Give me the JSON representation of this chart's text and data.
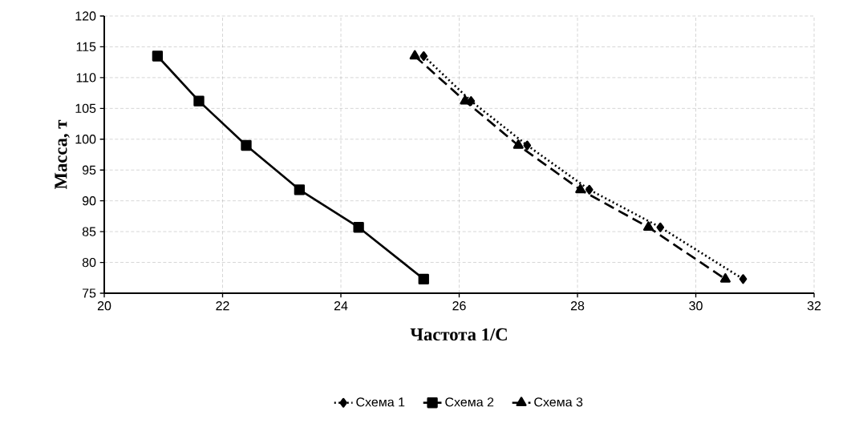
{
  "chart_data": {
    "type": "line",
    "xlabel": "Частота 1/С",
    "ylabel": "Масса, т",
    "xlim": [
      20,
      32
    ],
    "xticks": [
      20,
      22,
      24,
      26,
      28,
      30,
      32
    ],
    "ylim": [
      75,
      120
    ],
    "yticks": [
      75,
      80,
      85,
      90,
      95,
      100,
      105,
      110,
      115,
      120
    ],
    "grid": true,
    "legend": "bottom",
    "series": [
      {
        "name": "Схема 1",
        "color": "#000000",
        "marker": "diamond",
        "line_style": "dotted",
        "x": [
          25.4,
          26.2,
          27.15,
          28.2,
          29.4,
          30.8
        ],
        "values": [
          113.5,
          106.2,
          99,
          91.8,
          85.7,
          77.3
        ]
      },
      {
        "name": "Схема 2",
        "color": "#000000",
        "marker": "square",
        "line_style": "solid",
        "x": [
          20.9,
          21.6,
          22.4,
          23.3,
          24.3,
          25.4
        ],
        "values": [
          113.5,
          106.2,
          99,
          91.8,
          85.7,
          77.3
        ]
      },
      {
        "name": "Схема 3",
        "color": "#000000",
        "marker": "triangle",
        "line_style": "dashed",
        "x": [
          25.25,
          26.1,
          27.0,
          28.05,
          29.2,
          30.5
        ],
        "values": [
          113.5,
          106.2,
          99,
          91.8,
          85.7,
          77.3
        ]
      }
    ]
  }
}
